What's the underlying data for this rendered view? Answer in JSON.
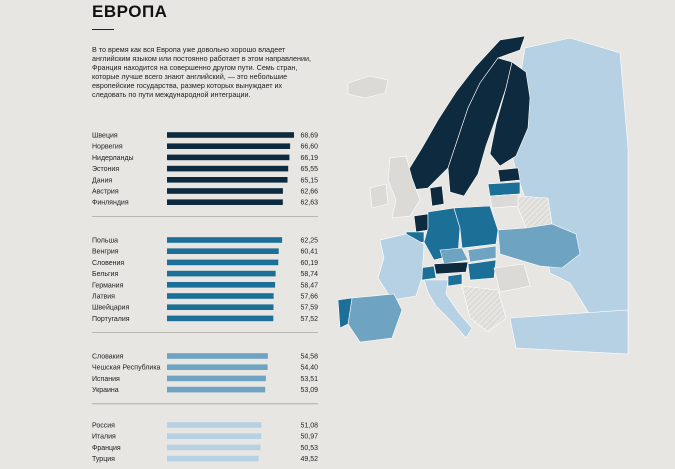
{
  "header": {
    "title": "ЕВРОПА",
    "intro": "В то время как вся Европа уже довольно хорошо владеет английским языком или постоянно работает в этом направлении, Франция находится на совершенно другом пути. Семь стран, которые лучше всего знают английский, — это небольшие европейские государства, размер которых вынуждает их следовать по пути международной интеграции."
  },
  "colors": {
    "group1": "#0d2a3f",
    "group2": "#1c6f96",
    "group3": "#6fa3c2",
    "group4": "#b5d1e3",
    "background": "#e8e6e2",
    "no_data": "#dcdad6"
  },
  "chart_data": {
    "type": "bar",
    "orientation": "horizontal",
    "groups": [
      {
        "color": "#0d2a3f",
        "categories": [
          "Швеция",
          "Норвегия",
          "Нидерланды",
          "Эстония",
          "Дания",
          "Австрия",
          "Финляндия"
        ],
        "values": [
          68.69,
          66.6,
          66.19,
          65.55,
          65.15,
          62.66,
          62.63
        ],
        "labels": [
          "68,69",
          "66,60",
          "66,19",
          "65,55",
          "65,15",
          "62,66",
          "62,63"
        ]
      },
      {
        "color": "#1c6f96",
        "categories": [
          "Польша",
          "Венгрия",
          "Словения",
          "Бельгия",
          "Германия",
          "Латвия",
          "Швейцария",
          "Португалия"
        ],
        "values": [
          62.25,
          60.41,
          60.19,
          58.74,
          58.47,
          57.66,
          57.59,
          57.52
        ],
        "labels": [
          "62,25",
          "60,41",
          "60,19",
          "58,74",
          "58,47",
          "57,66",
          "57,59",
          "57,52"
        ]
      },
      {
        "color": "#6fa3c2",
        "categories": [
          "Словакия",
          "Чешская Республика",
          "Испания",
          "Украина"
        ],
        "values": [
          54.58,
          54.4,
          53.51,
          53.09
        ],
        "labels": [
          "54,58",
          "54,40",
          "53,51",
          "53,09"
        ]
      },
      {
        "color": "#b5d1e3",
        "categories": [
          "Россия",
          "Италия",
          "Франция",
          "Турция"
        ],
        "values": [
          51.08,
          50.97,
          50.53,
          49.52
        ],
        "labels": [
          "51,08",
          "50,97",
          "50,53",
          "49,52"
        ]
      }
    ],
    "xlim": [
      0,
      68.69
    ],
    "grid": false,
    "legend": "none"
  },
  "map": {
    "type": "choropleth",
    "region": "Europe"
  }
}
